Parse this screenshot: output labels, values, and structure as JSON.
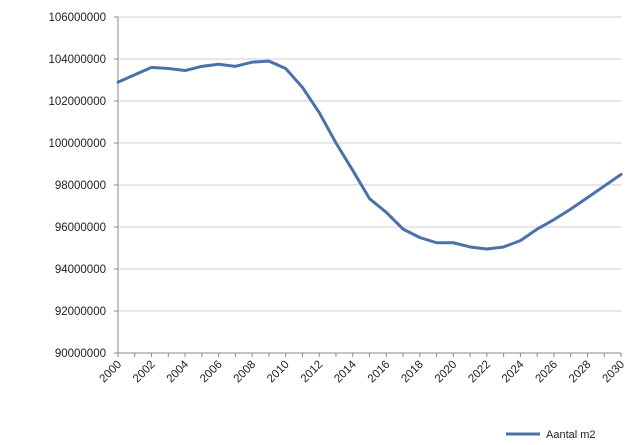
{
  "chart_data": {
    "type": "line",
    "title": "",
    "xlabel": "",
    "ylabel": "",
    "xlim": [
      2000,
      2030
    ],
    "ylim": [
      90000000,
      106000000
    ],
    "y_ticks": [
      "90000000",
      "92000000",
      "94000000",
      "96000000",
      "98000000",
      "100000000",
      "102000000",
      "104000000",
      "106000000"
    ],
    "x_ticks": [
      "2000",
      "2002",
      "2004",
      "2006",
      "2008",
      "2010",
      "2012",
      "2014",
      "2016",
      "2018",
      "2020",
      "2022",
      "2024",
      "2026",
      "2028",
      "2030"
    ],
    "grid": "horizontal",
    "legend": "bottom-right",
    "series": [
      {
        "name": "Aantal m2",
        "color": "#4a72a8",
        "x": [
          2000,
          2001,
          2002,
          2003,
          2004,
          2005,
          2006,
          2007,
          2008,
          2009,
          2010,
          2011,
          2012,
          2013,
          2014,
          2015,
          2016,
          2017,
          2018,
          2019,
          2020,
          2021,
          2022,
          2023,
          2024,
          2025,
          2026,
          2027,
          2028,
          2029,
          2030
        ],
        "values": [
          102900000,
          103250000,
          103600000,
          103550000,
          103450000,
          103650000,
          103750000,
          103650000,
          103850000,
          103900000,
          103550000,
          102650000,
          101450000,
          100000000,
          98700000,
          97350000,
          96700000,
          95900000,
          95500000,
          95250000,
          95250000,
          95050000,
          94950000,
          95050000,
          95350000,
          95900000,
          96350000,
          96850000,
          97400000,
          97950000,
          98500000
        ]
      }
    ]
  }
}
